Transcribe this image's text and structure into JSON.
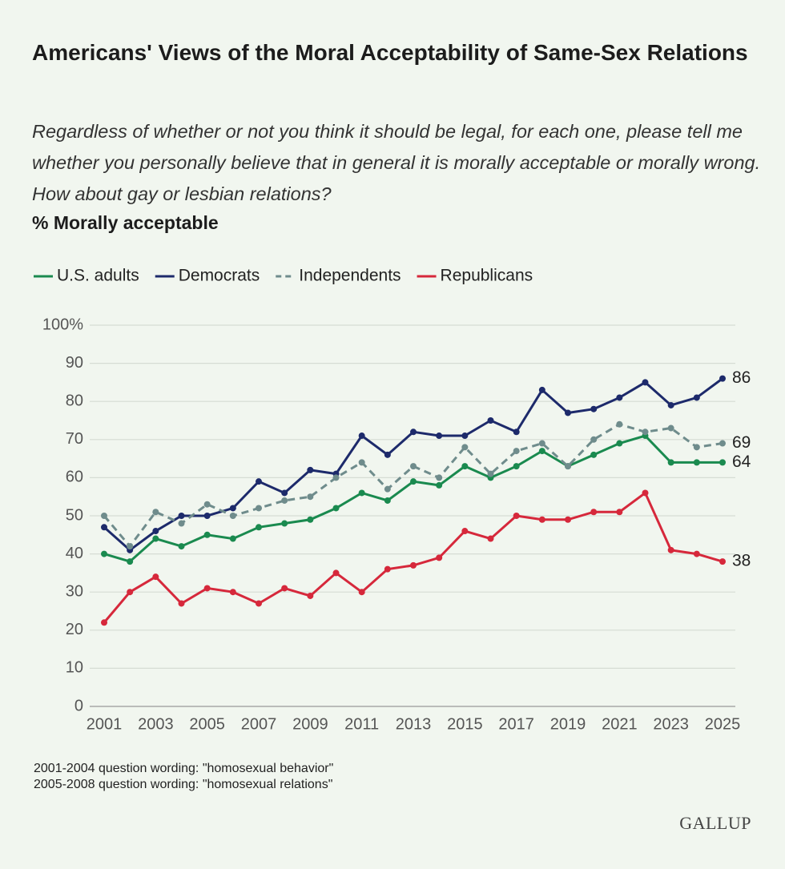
{
  "chart_data": {
    "type": "line",
    "title": "Americans' Views of the Moral Acceptability of Same-Sex Relations",
    "subtitle": "Regardless of whether or not you think it should be legal, for each one, please tell me whether you personally believe that in general it is morally acceptable or morally wrong. How about gay or lesbian relations?",
    "y_label": "% Morally acceptable",
    "x": [
      2001,
      2002,
      2003,
      2004,
      2005,
      2006,
      2007,
      2008,
      2009,
      2010,
      2011,
      2012,
      2013,
      2014,
      2015,
      2016,
      2017,
      2018,
      2019,
      2020,
      2021,
      2022,
      2023,
      2024,
      2025
    ],
    "series": [
      {
        "name": "U.S. adults",
        "color": "#1a8a4f",
        "dashed": false,
        "values": [
          40,
          38,
          44,
          42,
          45,
          44,
          47,
          48,
          49,
          52,
          56,
          54,
          59,
          58,
          63,
          60,
          63,
          67,
          63,
          66,
          69,
          71,
          64,
          64,
          64
        ]
      },
      {
        "name": "Democrats",
        "color": "#1d2a6b",
        "dashed": false,
        "values": [
          47,
          41,
          46,
          50,
          50,
          52,
          59,
          56,
          62,
          61,
          71,
          66,
          72,
          71,
          71,
          75,
          72,
          83,
          77,
          78,
          81,
          85,
          79,
          81,
          86
        ]
      },
      {
        "name": "Independents",
        "color": "#6f8c8c",
        "dashed": true,
        "values": [
          50,
          42,
          51,
          48,
          53,
          50,
          52,
          54,
          55,
          60,
          64,
          57,
          63,
          60,
          68,
          61,
          67,
          69,
          63,
          70,
          74,
          72,
          73,
          68,
          69
        ]
      },
      {
        "name": "Republicans",
        "color": "#d6283b",
        "dashed": false,
        "values": [
          22,
          30,
          34,
          27,
          31,
          30,
          27,
          31,
          29,
          35,
          30,
          36,
          37,
          39,
          46,
          44,
          50,
          49,
          49,
          51,
          51,
          56,
          41,
          40,
          38
        ]
      }
    ],
    "xlim": [
      2001,
      2025
    ],
    "xticks": [
      2001,
      2003,
      2005,
      2007,
      2009,
      2011,
      2013,
      2015,
      2017,
      2019,
      2021,
      2023,
      2025
    ],
    "ylim": [
      0,
      100
    ],
    "yticks": [
      0,
      10,
      20,
      30,
      40,
      50,
      60,
      70,
      80,
      90,
      {
        "value": 100,
        "label": "100%"
      }
    ],
    "grid": true,
    "notes": [
      "2001-2004 question wording: \"homosexual behavior\"",
      "2005-2008 question wording: \"homosexual relations\""
    ],
    "source": "GALLUP"
  }
}
